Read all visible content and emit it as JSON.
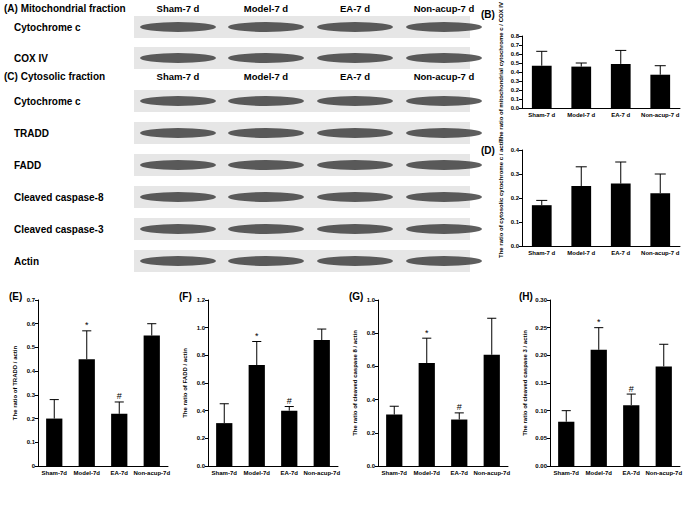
{
  "blots": [
    {
      "label": "(A) Mitochondrial fraction",
      "lanes": [
        "Sham-7 d",
        "Model-7 d",
        "EA-7 d",
        "Non-acup-7 d"
      ],
      "rows": [
        "Cytochrome c",
        "COX IV"
      ]
    },
    {
      "label": "(C) Cytosolic fraction",
      "lanes": [
        "Sham-7 d",
        "Model-7 d",
        "EA-7 d",
        "Non-acup-7 d"
      ],
      "rows": [
        "Cytochrome c",
        "TRADD",
        "FADD",
        "Cleaved caspase-8",
        "Cleaved caspase-3",
        "Actin"
      ]
    }
  ],
  "chart_data": [
    {
      "type": "bar",
      "title": "(B)",
      "y_label": "The ratio of mitochondrial cytochrome c / COX IV",
      "categories": [
        "Sham-7 d",
        "Model-7 d",
        "EA-7 d",
        "Non-acup-7 d"
      ],
      "values": [
        0.47,
        0.46,
        0.49,
        0.37
      ],
      "errors": [
        0.16,
        0.04,
        0.15,
        0.1
      ],
      "color": "#000000",
      "ylim": [
        0,
        0.8
      ],
      "yticks": [
        {
          "value": 0,
          "label": "0.0"
        },
        0.1,
        0.2,
        0.3,
        0.4,
        0.5,
        0.6,
        0.7,
        0.8
      ],
      "grid": false
    },
    {
      "type": "bar",
      "title": "(D)",
      "y_label": "The ratio of cytosolic cytochrome c / actin",
      "categories": [
        "Sham-7 d",
        "Model-7 d",
        "EA-7 d",
        "Non-acup-7 d"
      ],
      "values": [
        0.17,
        0.25,
        0.26,
        0.22
      ],
      "errors": [
        0.02,
        0.08,
        0.09,
        0.08
      ],
      "color": "#000000",
      "ylim": [
        0,
        0.4
      ],
      "yticks": [
        {
          "value": 0,
          "label": "0.0"
        },
        0.1,
        0.2,
        0.3,
        0.4
      ],
      "grid": false
    },
    {
      "type": "bar",
      "title": "(E)",
      "y_label": "The ratio of TRADD / actin",
      "categories": [
        "Sham-7d",
        "Model-7d",
        "EA-7d",
        "Non-acup-7d"
      ],
      "values": [
        0.2,
        0.45,
        0.22,
        0.55
      ],
      "errors": [
        0.08,
        0.12,
        0.05,
        0.05
      ],
      "annotations": [
        null,
        "*",
        "#",
        null
      ],
      "color": "#000000",
      "ylim": [
        0,
        0.7
      ],
      "yticks": [
        0,
        0.1,
        0.2,
        0.3,
        0.4,
        0.5,
        0.6,
        0.7
      ],
      "grid": false
    },
    {
      "type": "bar",
      "title": "(F)",
      "y_label": "The ratio of FADD / actin",
      "categories": [
        "Sham-7d",
        "Model-7d",
        "EA-7d",
        "Non-acup-7d"
      ],
      "values": [
        0.31,
        0.73,
        0.4,
        0.91
      ],
      "errors": [
        0.14,
        0.17,
        0.03,
        0.08
      ],
      "annotations": [
        null,
        "*",
        "#",
        null
      ],
      "color": "#000000",
      "ylim": [
        0,
        1.2
      ],
      "yticks": [
        {
          "value": 0,
          "label": "0.0"
        },
        0.2,
        0.4,
        0.6,
        0.8,
        {
          "value": 1,
          "label": "1.0"
        },
        1.2
      ],
      "grid": false
    },
    {
      "type": "bar",
      "title": "(G)",
      "y_label": "The ratio of cleaved caspase 8 / actin",
      "categories": [
        "Sham-7d",
        "Model-7d",
        "EA-7d",
        "Non-acup-7d"
      ],
      "values": [
        0.31,
        0.62,
        0.28,
        0.67
      ],
      "errors": [
        0.05,
        0.15,
        0.04,
        0.22
      ],
      "annotations": [
        null,
        "*",
        "#",
        null
      ],
      "color": "#000000",
      "ylim": [
        0,
        1.0
      ],
      "yticks": [
        {
          "value": 0,
          "label": "0.0"
        },
        0.2,
        0.4,
        0.6,
        0.8,
        {
          "value": 1,
          "label": "1.0"
        }
      ],
      "grid": false
    },
    {
      "type": "bar",
      "title": "(H)",
      "y_label": "The ratio of cleaved caspase 3 / actin",
      "categories": [
        "Sham-7d",
        "Model-7d",
        "EA-7d",
        "Non-acup-7d"
      ],
      "values": [
        0.08,
        0.21,
        0.11,
        0.18
      ],
      "errors": [
        0.02,
        0.04,
        0.02,
        0.04
      ],
      "annotations": [
        null,
        "*",
        "#",
        null
      ],
      "color": "#000000",
      "ylim": [
        0,
        0.3
      ],
      "yticks": [
        {
          "value": 0,
          "label": "0.00"
        },
        0.05,
        {
          "value": 0.1,
          "label": "0.10"
        },
        0.15,
        {
          "value": 0.2,
          "label": "0.20"
        },
        0.25,
        {
          "value": 0.3,
          "label": "0.30"
        }
      ],
      "grid": false
    }
  ]
}
